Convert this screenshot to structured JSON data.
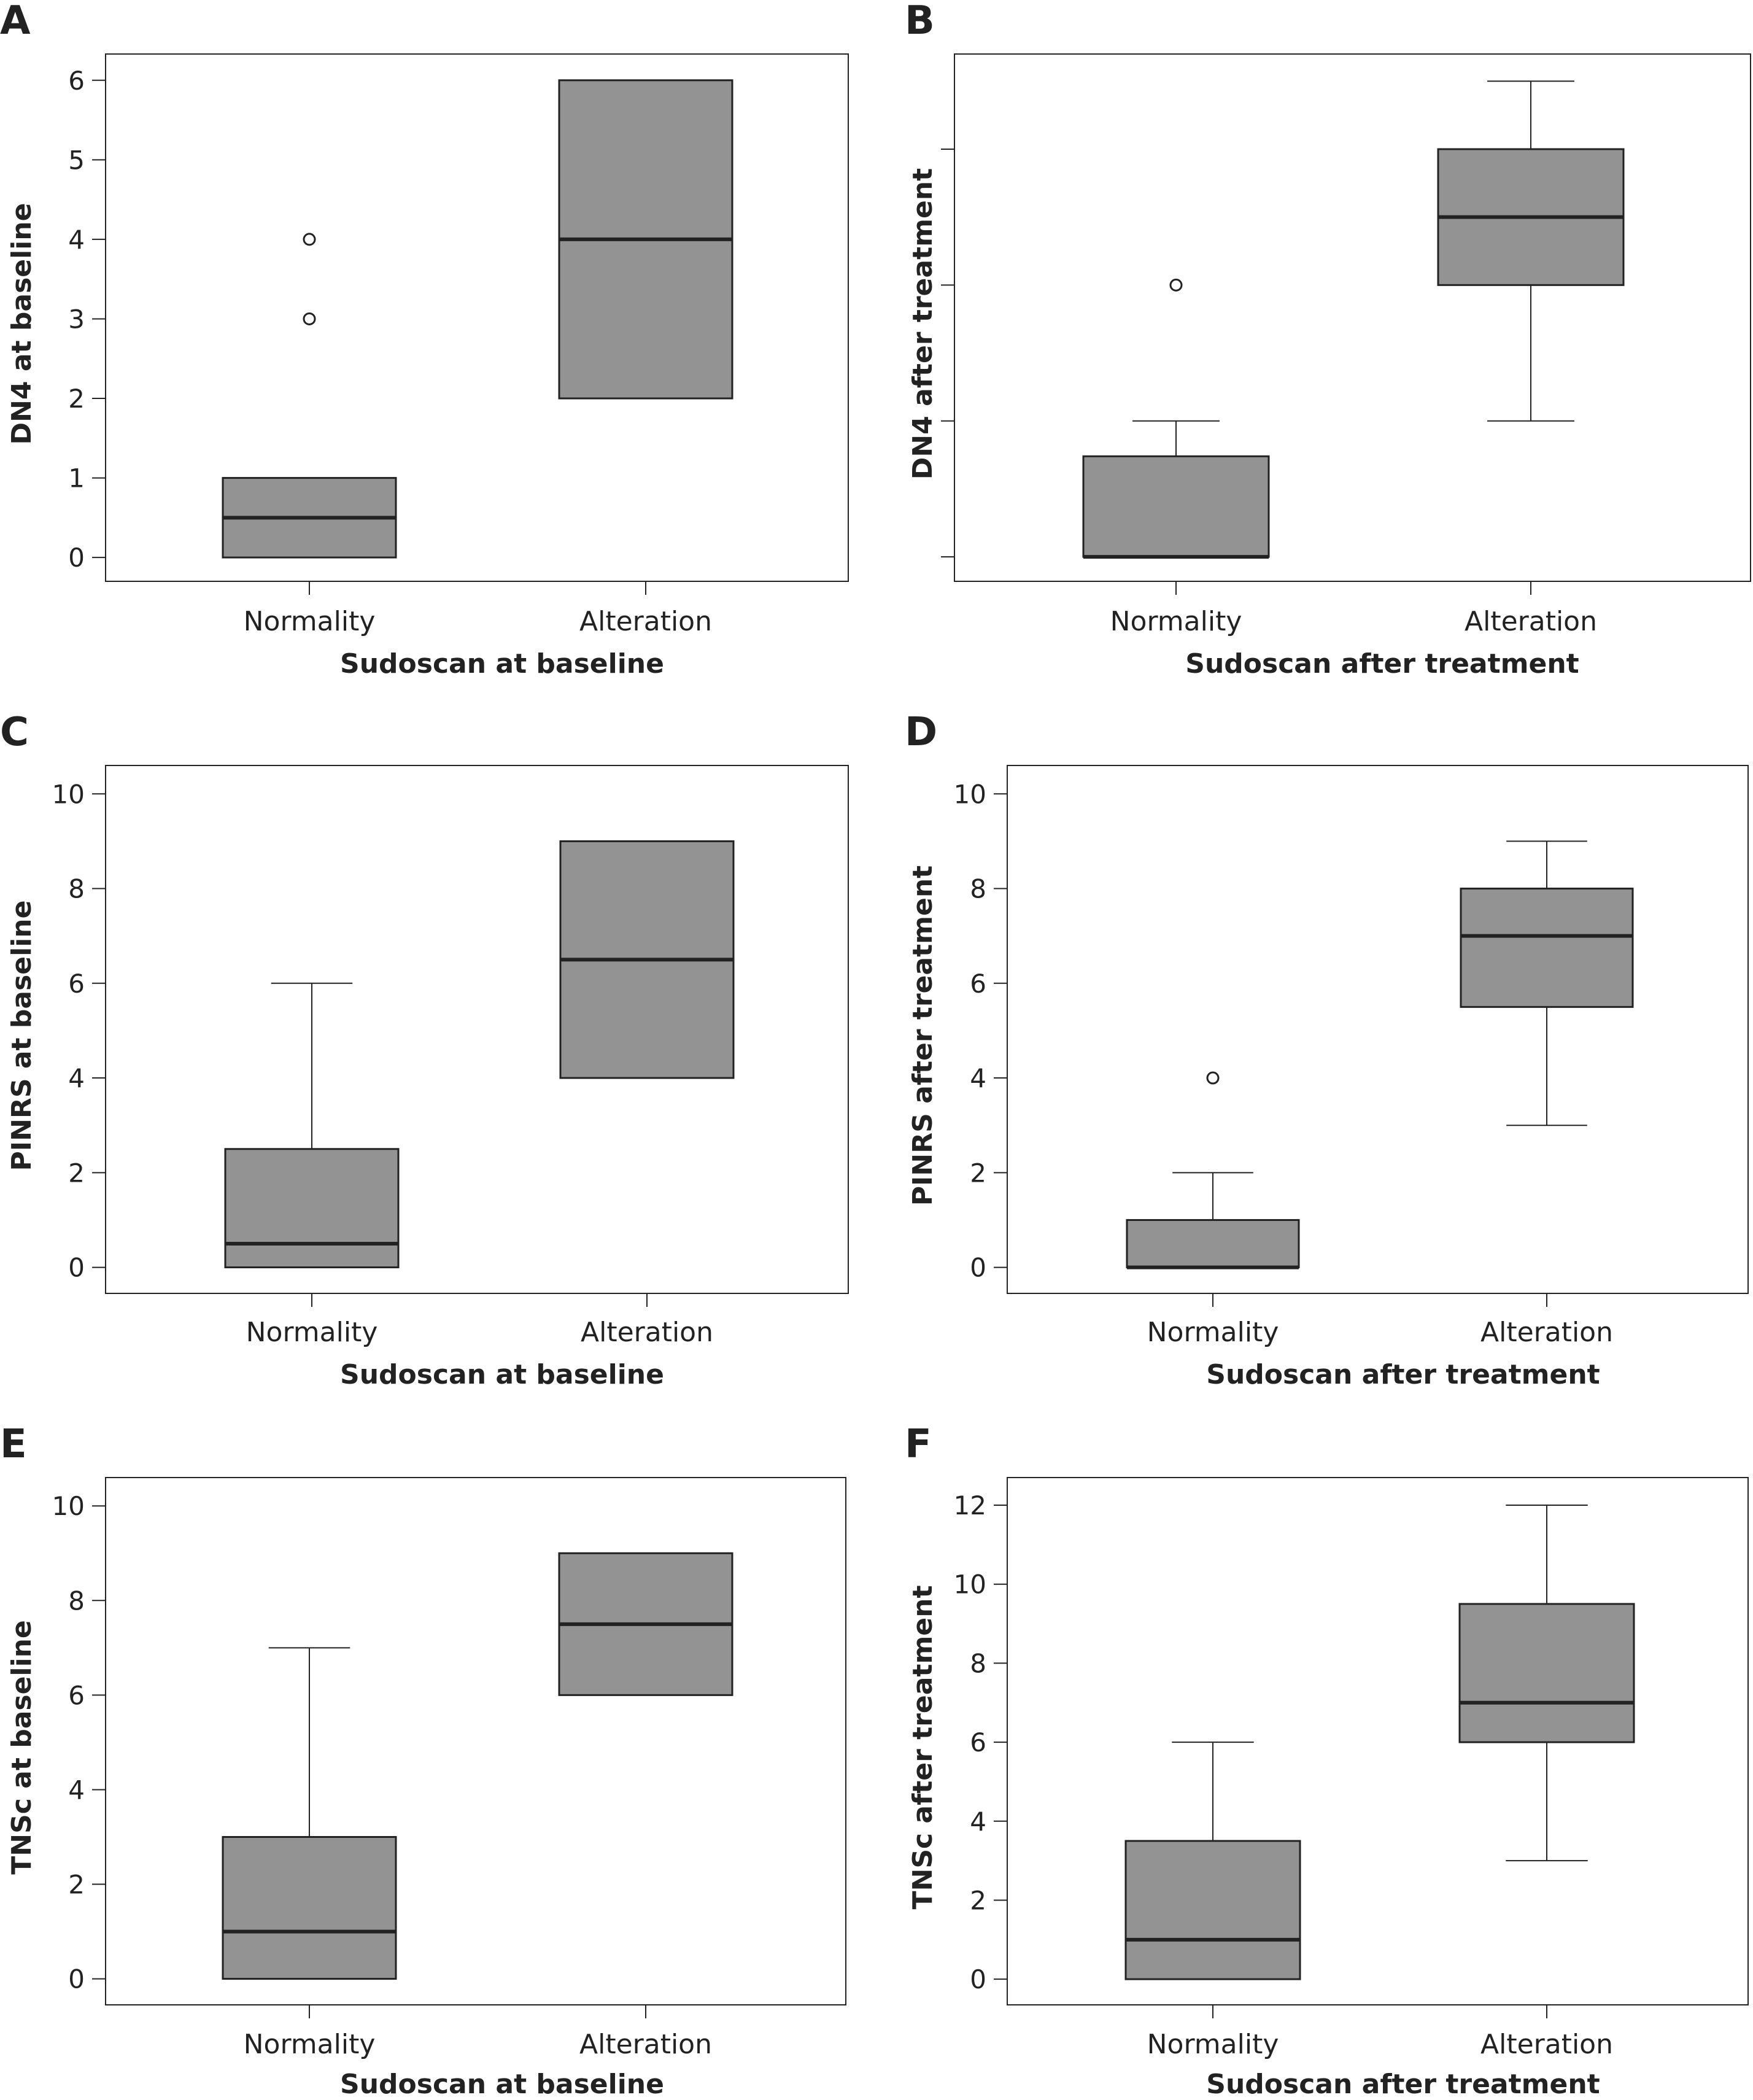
{
  "colors": {
    "box_fill": "#939393",
    "stroke": "#222222",
    "frame": "#222222",
    "background": "#ffffff"
  },
  "chart_data": [
    {
      "panel": "A",
      "type": "box",
      "categories": [
        "Normality",
        "Alteration"
      ],
      "xlabel": "Sudoscan at baseline",
      "ylabel": "DN4 at baseline",
      "yticks": [
        0,
        1,
        2,
        3,
        4,
        5,
        6
      ],
      "ylim": [
        -0.3,
        6.33
      ],
      "boxes": [
        {
          "category": "Normality",
          "q1": 0,
          "median": 0.5,
          "q3": 1,
          "whisker_low": 0,
          "whisker_high": 1,
          "outliers": [
            3,
            4
          ]
        },
        {
          "category": "Alteration",
          "q1": 2,
          "median": 4,
          "q3": 6,
          "whisker_low": 2,
          "whisker_high": 6,
          "outliers": []
        }
      ]
    },
    {
      "panel": "B",
      "type": "box",
      "categories": [
        "Normality",
        "Alteration"
      ],
      "xlabel": "Sudoscan after treatment",
      "ylabel": "DN4 after treatment",
      "yticks": [
        0,
        1,
        2,
        3
      ],
      "show_tick_labels": false,
      "ylim": [
        -0.18,
        3.7
      ],
      "boxes": [
        {
          "category": "Normality",
          "q1": 0,
          "median": 0,
          "q3": 0.74,
          "whisker_low": 0,
          "whisker_high": 1,
          "outliers": [
            2
          ]
        },
        {
          "category": "Alteration",
          "q1": 2,
          "median": 2.5,
          "q3": 3,
          "whisker_low": 1,
          "whisker_high": 3.5,
          "outliers": []
        }
      ]
    },
    {
      "panel": "C",
      "type": "box",
      "categories": [
        "Normality",
        "Alteration"
      ],
      "xlabel": "Sudoscan at baseline",
      "ylabel": "PINRS at baseline",
      "yticks": [
        0,
        2,
        4,
        6,
        8,
        10
      ],
      "ylim": [
        -0.55,
        10.6
      ],
      "boxes": [
        {
          "category": "Normality",
          "q1": 0,
          "median": 0.5,
          "q3": 2.5,
          "whisker_low": 0,
          "whisker_high": 6,
          "outliers": []
        },
        {
          "category": "Alteration",
          "q1": 4,
          "median": 6.5,
          "q3": 9,
          "whisker_low": 4,
          "whisker_high": 9,
          "outliers": []
        }
      ]
    },
    {
      "panel": "D",
      "type": "box",
      "categories": [
        "Normality",
        "Alteration"
      ],
      "xlabel": "Sudoscan after treatment",
      "ylabel": "PINRS after treatment",
      "yticks": [
        0,
        2,
        4,
        6,
        8,
        10
      ],
      "ylim": [
        -0.55,
        10.6
      ],
      "boxes": [
        {
          "category": "Normality",
          "q1": 0,
          "median": 0,
          "q3": 1,
          "whisker_low": 0,
          "whisker_high": 2,
          "outliers": [
            4
          ]
        },
        {
          "category": "Alteration",
          "q1": 5.5,
          "median": 7,
          "q3": 8,
          "whisker_low": 3,
          "whisker_high": 9,
          "outliers": []
        }
      ]
    },
    {
      "panel": "E",
      "type": "box",
      "categories": [
        "Normality",
        "Alteration"
      ],
      "xlabel": "Sudoscan at baseline",
      "ylabel": "TNSc at baseline",
      "yticks": [
        0,
        2,
        4,
        6,
        8,
        10
      ],
      "ylim": [
        -0.55,
        10.6
      ],
      "boxes": [
        {
          "category": "Normality",
          "q1": 0,
          "median": 1,
          "q3": 3,
          "whisker_low": 0,
          "whisker_high": 7,
          "outliers": []
        },
        {
          "category": "Alteration",
          "q1": 6,
          "median": 7.5,
          "q3": 9,
          "whisker_low": 6,
          "whisker_high": 9,
          "outliers": []
        }
      ]
    },
    {
      "panel": "F",
      "type": "box",
      "categories": [
        "Normality",
        "Alteration"
      ],
      "xlabel": "Sudoscan after treatment",
      "ylabel": "TNSc after treatment",
      "yticks": [
        0,
        2,
        4,
        6,
        8,
        10,
        12
      ],
      "ylim": [
        -0.65,
        12.7
      ],
      "boxes": [
        {
          "category": "Normality",
          "q1": 0,
          "median": 1,
          "q3": 3.5,
          "whisker_low": 0,
          "whisker_high": 6,
          "outliers": []
        },
        {
          "category": "Alteration",
          "q1": 6,
          "median": 7,
          "q3": 9.5,
          "whisker_low": 3,
          "whisker_high": 12,
          "outliers": []
        }
      ]
    }
  ]
}
